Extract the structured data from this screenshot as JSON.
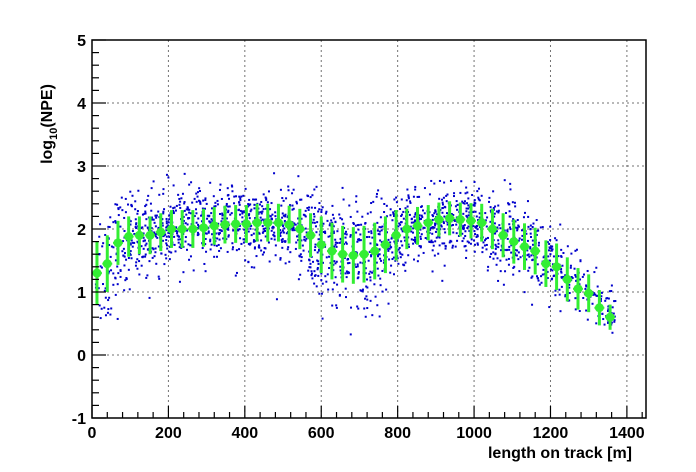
{
  "chart_data": {
    "type": "scatter",
    "title": "",
    "xlabel": "length on track [m]",
    "ylabel_parts": {
      "prefix": "log",
      "sub": "10",
      "suffix": "(NPE)"
    },
    "xlim": [
      0,
      1450
    ],
    "ylim": [
      -1,
      5
    ],
    "x_ticks": [
      0,
      200,
      400,
      600,
      800,
      1000,
      1200,
      1400
    ],
    "x_tick_labels": [
      "0",
      "200",
      "400",
      "600",
      "800",
      "1000",
      "1200",
      "1400"
    ],
    "y_ticks": [
      -1,
      0,
      1,
      2,
      3,
      4,
      5
    ],
    "y_tick_labels": [
      "-1",
      "0",
      "1",
      "2",
      "3",
      "4",
      "5"
    ],
    "grid": true,
    "colors": {
      "scatter": "#0000cc",
      "profile": "#33ee33"
    },
    "scatter_envelope": {
      "x": [
        10,
        50,
        100,
        150,
        200,
        250,
        300,
        350,
        400,
        450,
        500,
        550,
        600,
        650,
        700,
        750,
        800,
        850,
        900,
        950,
        1000,
        1050,
        1100,
        1150,
        1200,
        1250,
        1300,
        1350,
        1370
      ],
      "center": [
        1.3,
        1.55,
        1.85,
        1.95,
        2.0,
        2.05,
        2.05,
        2.1,
        2.1,
        2.1,
        2.05,
        1.95,
        1.7,
        1.6,
        1.6,
        1.65,
        1.9,
        2.05,
        2.1,
        2.15,
        2.1,
        2.0,
        1.8,
        1.65,
        1.45,
        1.2,
        1.0,
        0.75,
        0.6
      ],
      "spread": [
        0.6,
        0.5,
        0.35,
        0.3,
        0.3,
        0.3,
        0.28,
        0.28,
        0.28,
        0.28,
        0.3,
        0.35,
        0.45,
        0.45,
        0.45,
        0.45,
        0.35,
        0.28,
        0.25,
        0.25,
        0.28,
        0.3,
        0.35,
        0.35,
        0.3,
        0.3,
        0.25,
        0.2,
        0.2
      ],
      "density": [
        40,
        60,
        80,
        80,
        80,
        80,
        80,
        80,
        80,
        80,
        80,
        80,
        80,
        80,
        80,
        80,
        80,
        80,
        80,
        80,
        80,
        80,
        70,
        60,
        50,
        40,
        35,
        25,
        20
      ]
    },
    "profile_series": {
      "name": "",
      "x": [
        13,
        40,
        68,
        96,
        124,
        152,
        180,
        208,
        236,
        264,
        292,
        320,
        348,
        376,
        404,
        432,
        460,
        488,
        516,
        544,
        572,
        600,
        628,
        656,
        684,
        712,
        740,
        768,
        796,
        824,
        852,
        880,
        908,
        936,
        964,
        992,
        1020,
        1048,
        1076,
        1104,
        1132,
        1160,
        1188,
        1216,
        1244,
        1272,
        1300,
        1328,
        1356
      ],
      "y": [
        1.3,
        1.45,
        1.78,
        1.88,
        1.9,
        1.9,
        1.95,
        2.0,
        2.0,
        2.0,
        2.02,
        2.05,
        2.07,
        2.08,
        2.08,
        2.1,
        2.1,
        2.1,
        2.07,
        2.0,
        1.9,
        1.75,
        1.65,
        1.6,
        1.58,
        1.6,
        1.65,
        1.75,
        1.9,
        2.0,
        2.05,
        2.1,
        2.15,
        2.17,
        2.15,
        2.13,
        2.1,
        2.0,
        1.9,
        1.8,
        1.72,
        1.65,
        1.45,
        1.4,
        1.2,
        1.05,
        0.98,
        0.75,
        0.6
      ],
      "err": [
        0.5,
        0.45,
        0.35,
        0.32,
        0.3,
        0.3,
        0.3,
        0.3,
        0.3,
        0.3,
        0.3,
        0.3,
        0.3,
        0.3,
        0.3,
        0.3,
        0.3,
        0.3,
        0.3,
        0.32,
        0.35,
        0.45,
        0.45,
        0.45,
        0.45,
        0.45,
        0.45,
        0.45,
        0.4,
        0.32,
        0.3,
        0.28,
        0.27,
        0.27,
        0.27,
        0.28,
        0.3,
        0.32,
        0.35,
        0.35,
        0.37,
        0.37,
        0.37,
        0.37,
        0.35,
        0.33,
        0.3,
        0.28,
        0.2
      ],
      "xerr": 13
    }
  }
}
